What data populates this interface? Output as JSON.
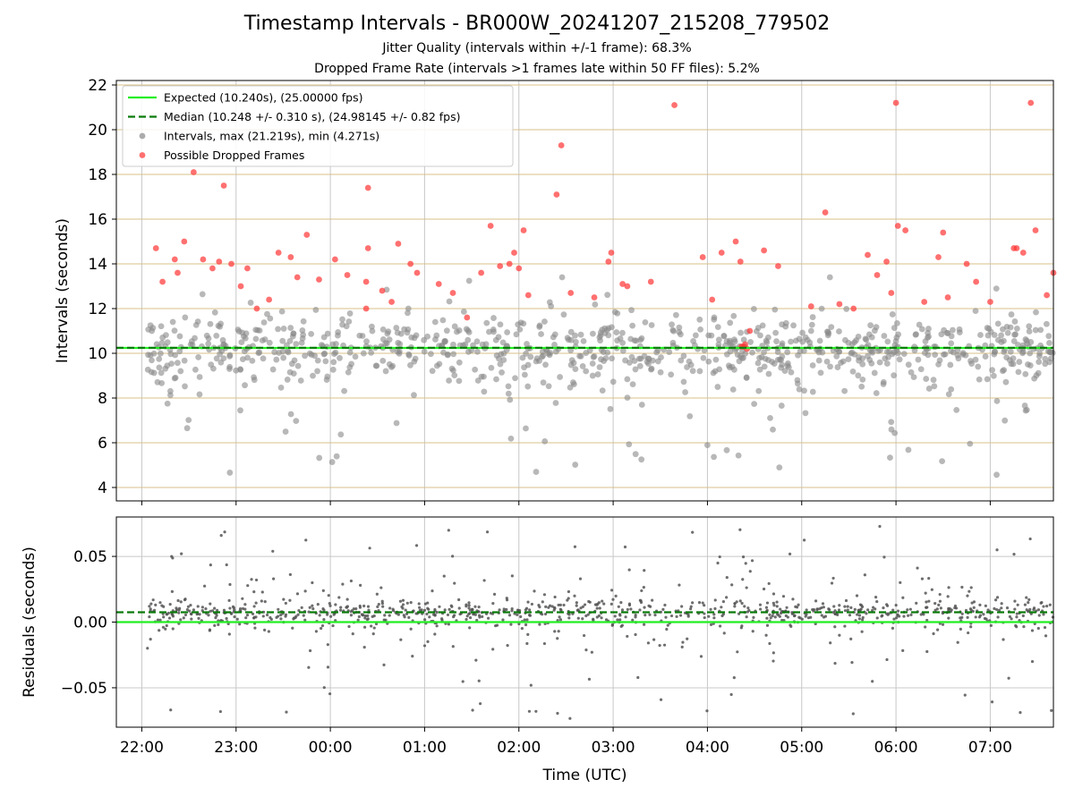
{
  "figure": {
    "title": "Timestamp Intervals - BR000W_20241207_215208_779502",
    "subtitle_1": "Jitter Quality (intervals within +/-1 frame): 68.3%",
    "subtitle_2": "Dropped Frame Rate (intervals >1 frames late within 50 FF files): 5.2%"
  },
  "chart_data": [
    {
      "type": "scatter",
      "panel": "intervals",
      "xlabel": "",
      "ylabel": "Intervals (seconds)",
      "x_unit": "hours since 00:00 UTC 2024-12-08 (axis shown as HH:MM UTC)",
      "xlim": [
        -2.27,
        7.67
      ],
      "ylim": [
        3.4,
        22.2
      ],
      "yticks": [
        4,
        6,
        8,
        10,
        12,
        14,
        16,
        18,
        20,
        22
      ],
      "xtick_labels": [
        "22:00",
        "23:00",
        "00:00",
        "01:00",
        "02:00",
        "03:00",
        "04:00",
        "05:00",
        "06:00",
        "07:00"
      ],
      "grid": true,
      "legend_position": "upper-left",
      "legend": [
        {
          "label": "Expected (10.240s), (25.00000 fps)",
          "style": "solid-line",
          "color": "#22ee22"
        },
        {
          "label": "Median (10.248 +/- 0.310 s), (24.98145 +/- 0.82 fps)",
          "style": "dashed-line",
          "color": "#0a7a0a"
        },
        {
          "label": "Intervals, max (21.219s), min (4.271s)",
          "style": "marker",
          "color": "#888888"
        },
        {
          "label": "Possible Dropped Frames",
          "style": "marker",
          "color": "#ff3333"
        }
      ],
      "expected_interval": 10.24,
      "median_interval": 10.248,
      "intervals_summary": {
        "max": 21.219,
        "min": 4.271,
        "count_approx": 900
      },
      "dropped_frames": [
        [
          -1.85,
          14.7
        ],
        [
          -1.78,
          13.2
        ],
        [
          -1.65,
          14.2
        ],
        [
          -1.62,
          13.6
        ],
        [
          -1.55,
          15.0
        ],
        [
          -1.45,
          18.1
        ],
        [
          -1.35,
          14.2
        ],
        [
          -1.25,
          13.8
        ],
        [
          -1.18,
          14.1
        ],
        [
          -1.13,
          17.5
        ],
        [
          -1.05,
          14.0
        ],
        [
          -0.95,
          13.0
        ],
        [
          -0.88,
          13.8
        ],
        [
          -0.78,
          12.0
        ],
        [
          -0.65,
          12.4
        ],
        [
          -0.55,
          14.5
        ],
        [
          -0.42,
          14.3
        ],
        [
          -0.35,
          13.4
        ],
        [
          -0.25,
          15.3
        ],
        [
          -0.12,
          13.3
        ],
        [
          0.05,
          14.2
        ],
        [
          0.18,
          13.5
        ],
        [
          0.38,
          12.0
        ],
        [
          0.4,
          14.7
        ],
        [
          0.55,
          12.8
        ],
        [
          0.4,
          17.4
        ],
        [
          0.38,
          13.2
        ],
        [
          0.65,
          12.3
        ],
        [
          0.72,
          14.9
        ],
        [
          0.85,
          14.0
        ],
        [
          0.92,
          13.6
        ],
        [
          1.15,
          13.1
        ],
        [
          1.3,
          12.7
        ],
        [
          1.45,
          11.6
        ],
        [
          1.6,
          13.6
        ],
        [
          1.7,
          15.7
        ],
        [
          1.8,
          13.9
        ],
        [
          1.9,
          14.0
        ],
        [
          1.95,
          14.5
        ],
        [
          2.0,
          13.8
        ],
        [
          2.05,
          15.5
        ],
        [
          2.1,
          12.6
        ],
        [
          2.4,
          17.1
        ],
        [
          2.45,
          19.3
        ],
        [
          2.55,
          12.7
        ],
        [
          2.8,
          12.5
        ],
        [
          2.95,
          14.1
        ],
        [
          2.98,
          14.5
        ],
        [
          3.1,
          13.1
        ],
        [
          3.15,
          13.0
        ],
        [
          3.4,
          13.2
        ],
        [
          3.65,
          21.1
        ],
        [
          3.95,
          14.3
        ],
        [
          4.05,
          12.4
        ],
        [
          4.15,
          14.5
        ],
        [
          4.3,
          15.0
        ],
        [
          4.35,
          14.1
        ],
        [
          4.45,
          11.0
        ],
        [
          4.6,
          14.6
        ],
        [
          4.75,
          13.9
        ],
        [
          5.1,
          12.1
        ],
        [
          5.25,
          16.3
        ],
        [
          5.4,
          12.2
        ],
        [
          5.55,
          12.0
        ],
        [
          5.7,
          14.4
        ],
        [
          5.8,
          13.5
        ],
        [
          5.9,
          14.1
        ],
        [
          5.95,
          12.7
        ],
        [
          6.0,
          21.2
        ],
        [
          6.02,
          15.7
        ],
        [
          6.1,
          15.5
        ],
        [
          6.3,
          12.3
        ],
        [
          6.45,
          14.3
        ],
        [
          6.5,
          15.4
        ],
        [
          6.55,
          12.5
        ],
        [
          6.75,
          14.0
        ],
        [
          6.85,
          13.2
        ],
        [
          7.0,
          12.3
        ],
        [
          7.25,
          14.7
        ],
        [
          7.28,
          14.7
        ],
        [
          7.35,
          14.5
        ],
        [
          7.43,
          21.2
        ],
        [
          7.48,
          15.5
        ],
        [
          7.6,
          12.6
        ],
        [
          7.67,
          13.6
        ],
        [
          4.38,
          10.3
        ],
        [
          4.42,
          10.2
        ],
        [
          4.4,
          10.4
        ],
        [
          4.36,
          10.3
        ]
      ]
    },
    {
      "type": "scatter",
      "panel": "residuals",
      "xlabel": "Time (UTC)",
      "ylabel": "Residuals (seconds)",
      "xlim": [
        -2.27,
        7.67
      ],
      "ylim": [
        -0.08,
        0.08
      ],
      "yticks": [
        -0.05,
        0.0,
        0.05
      ],
      "ytick_labels": [
        "−0.05",
        "0.00",
        "0.05"
      ],
      "xtick_labels": [
        "22:00",
        "23:00",
        "00:00",
        "01:00",
        "02:00",
        "03:00",
        "04:00",
        "05:00",
        "06:00",
        "07:00"
      ],
      "grid": true,
      "expected_line": 0.0,
      "median_line": 0.0075,
      "residual_summary": {
        "typical_band": [
          -0.01,
          0.02
        ],
        "extreme_range": [
          -0.077,
          0.078
        ]
      }
    }
  ],
  "colors": {
    "expected": "#22ee22",
    "median": "#0a7a0a",
    "intervals": "#888888",
    "dropped": "#ff3333",
    "hgrid_top": "#d8c088",
    "grid": "#c8c8c8"
  }
}
